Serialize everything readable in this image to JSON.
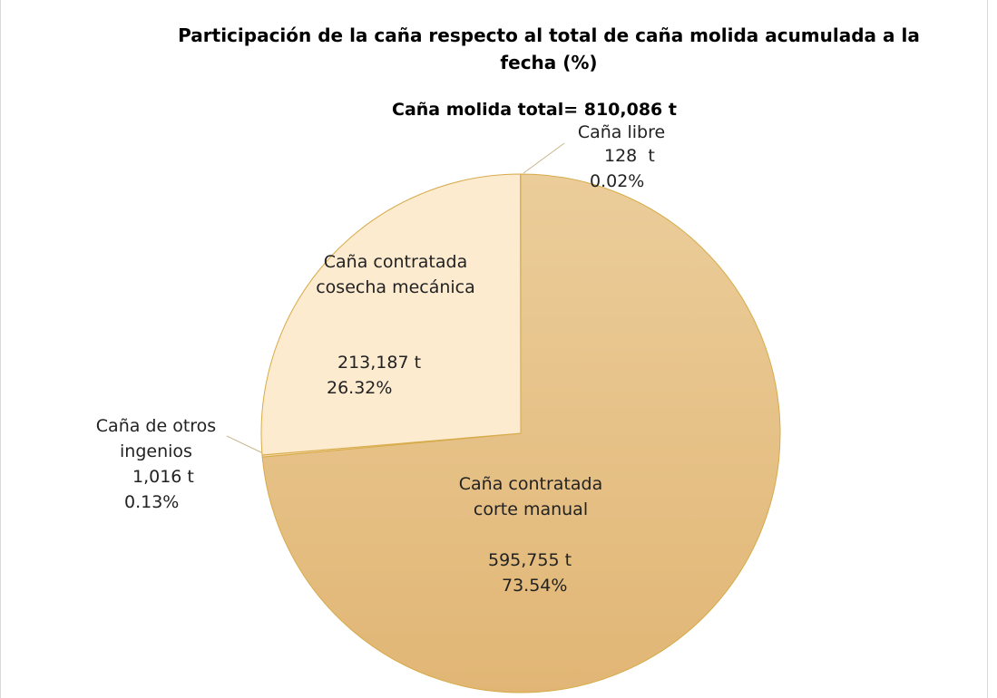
{
  "chart_data": {
    "type": "pie",
    "title": "Participación de la caña respecto al total de caña molida acumulada a la fecha (%)",
    "subtitle": "Caña molida total= 810,086 t",
    "categories": [
      "Caña contratada corte manual",
      "Caña de otros ingenios",
      "Caña contratada cosecha mecánica",
      "Caña libre"
    ],
    "values": [
      595755,
      1016,
      213187,
      128
    ],
    "value_labels": [
      "595,755 t",
      "1,016 t",
      "213,187 t",
      "128  t"
    ],
    "percent_labels": [
      "73.54%",
      "0.13%",
      "26.32%",
      "0.02%"
    ],
    "colors": [
      "#e4bd80",
      "#f5d9a8",
      "#fdebd0",
      "#f0d09a"
    ]
  }
}
